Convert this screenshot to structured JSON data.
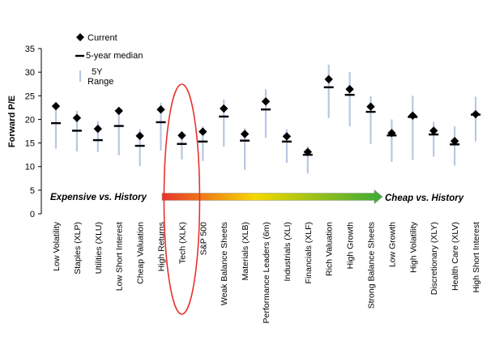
{
  "chart_data": {
    "type": "scatter",
    "ylabel": "Forward P/E",
    "ylim": [
      0,
      35
    ],
    "yticks": [
      0,
      5,
      10,
      15,
      20,
      25,
      30,
      35
    ],
    "grid": false,
    "legend_position": "top-left",
    "legend": {
      "current": "Current",
      "median": "5-year median",
      "range_line1": "5Y",
      "range_line2": "Range"
    },
    "colors": {
      "current": "#000000",
      "median": "#000000",
      "range": "#b9c7e3",
      "highlight": "#e8322c",
      "arrow_start": "#e8322c",
      "arrow_mid": "#f5d700",
      "arrow_end": "#3aaa35"
    },
    "arrow": {
      "left_label": "Expensive vs. History",
      "right_label": "Cheap vs. History"
    },
    "highlighted_category": "Tech (XLK)",
    "categories": [
      "Low Volatility",
      "Staples (XLP)",
      "Utilities (XLU)",
      "Low Short Interest",
      "Cheap Valuation",
      "High Returns",
      "Tech (XLK)",
      "S&P 500",
      "Weak Balance Sheets",
      "Materials (XLB)",
      "Performance Leaders (6m)",
      "Industrials (XLI)",
      "Financials (XLF)",
      "Rich Valuation",
      "High Growth",
      "Strong Balance Sheets",
      "Low Growth",
      "High Volatility",
      "Discretionary (XLY)",
      "Health Care (XLV)",
      "High Short Interest"
    ],
    "series": [
      {
        "name": "Current",
        "values": [
          22.8,
          20.3,
          18.0,
          21.8,
          16.5,
          22.1,
          16.6,
          17.4,
          22.3,
          16.9,
          23.8,
          16.4,
          13.1,
          28.5,
          26.4,
          22.7,
          17.1,
          20.8,
          17.6,
          15.4,
          21.1
        ]
      },
      {
        "name": "5-year median",
        "values": [
          19.2,
          17.6,
          15.6,
          18.6,
          14.4,
          19.4,
          14.8,
          15.3,
          20.6,
          15.5,
          22.1,
          15.3,
          12.5,
          26.8,
          25.2,
          21.6,
          16.6,
          20.5,
          16.8,
          14.7,
          21.0
        ]
      },
      {
        "name": "5Y Range low",
        "values": [
          13.8,
          13.2,
          13.1,
          12.4,
          10.1,
          13.4,
          11.5,
          11.2,
          14.2,
          9.3,
          16.1,
          10.8,
          8.5,
          20.3,
          18.5,
          14.8,
          11.0,
          11.4,
          12.1,
          10.2,
          15.3
        ]
      },
      {
        "name": "5Y Range high",
        "values": [
          23.5,
          21.8,
          19.6,
          22.6,
          17.9,
          23.5,
          17.1,
          18.5,
          24.2,
          18.1,
          26.4,
          17.9,
          14.3,
          31.6,
          30.0,
          24.9,
          20.0,
          25.0,
          19.5,
          18.5,
          24.8
        ]
      }
    ]
  }
}
